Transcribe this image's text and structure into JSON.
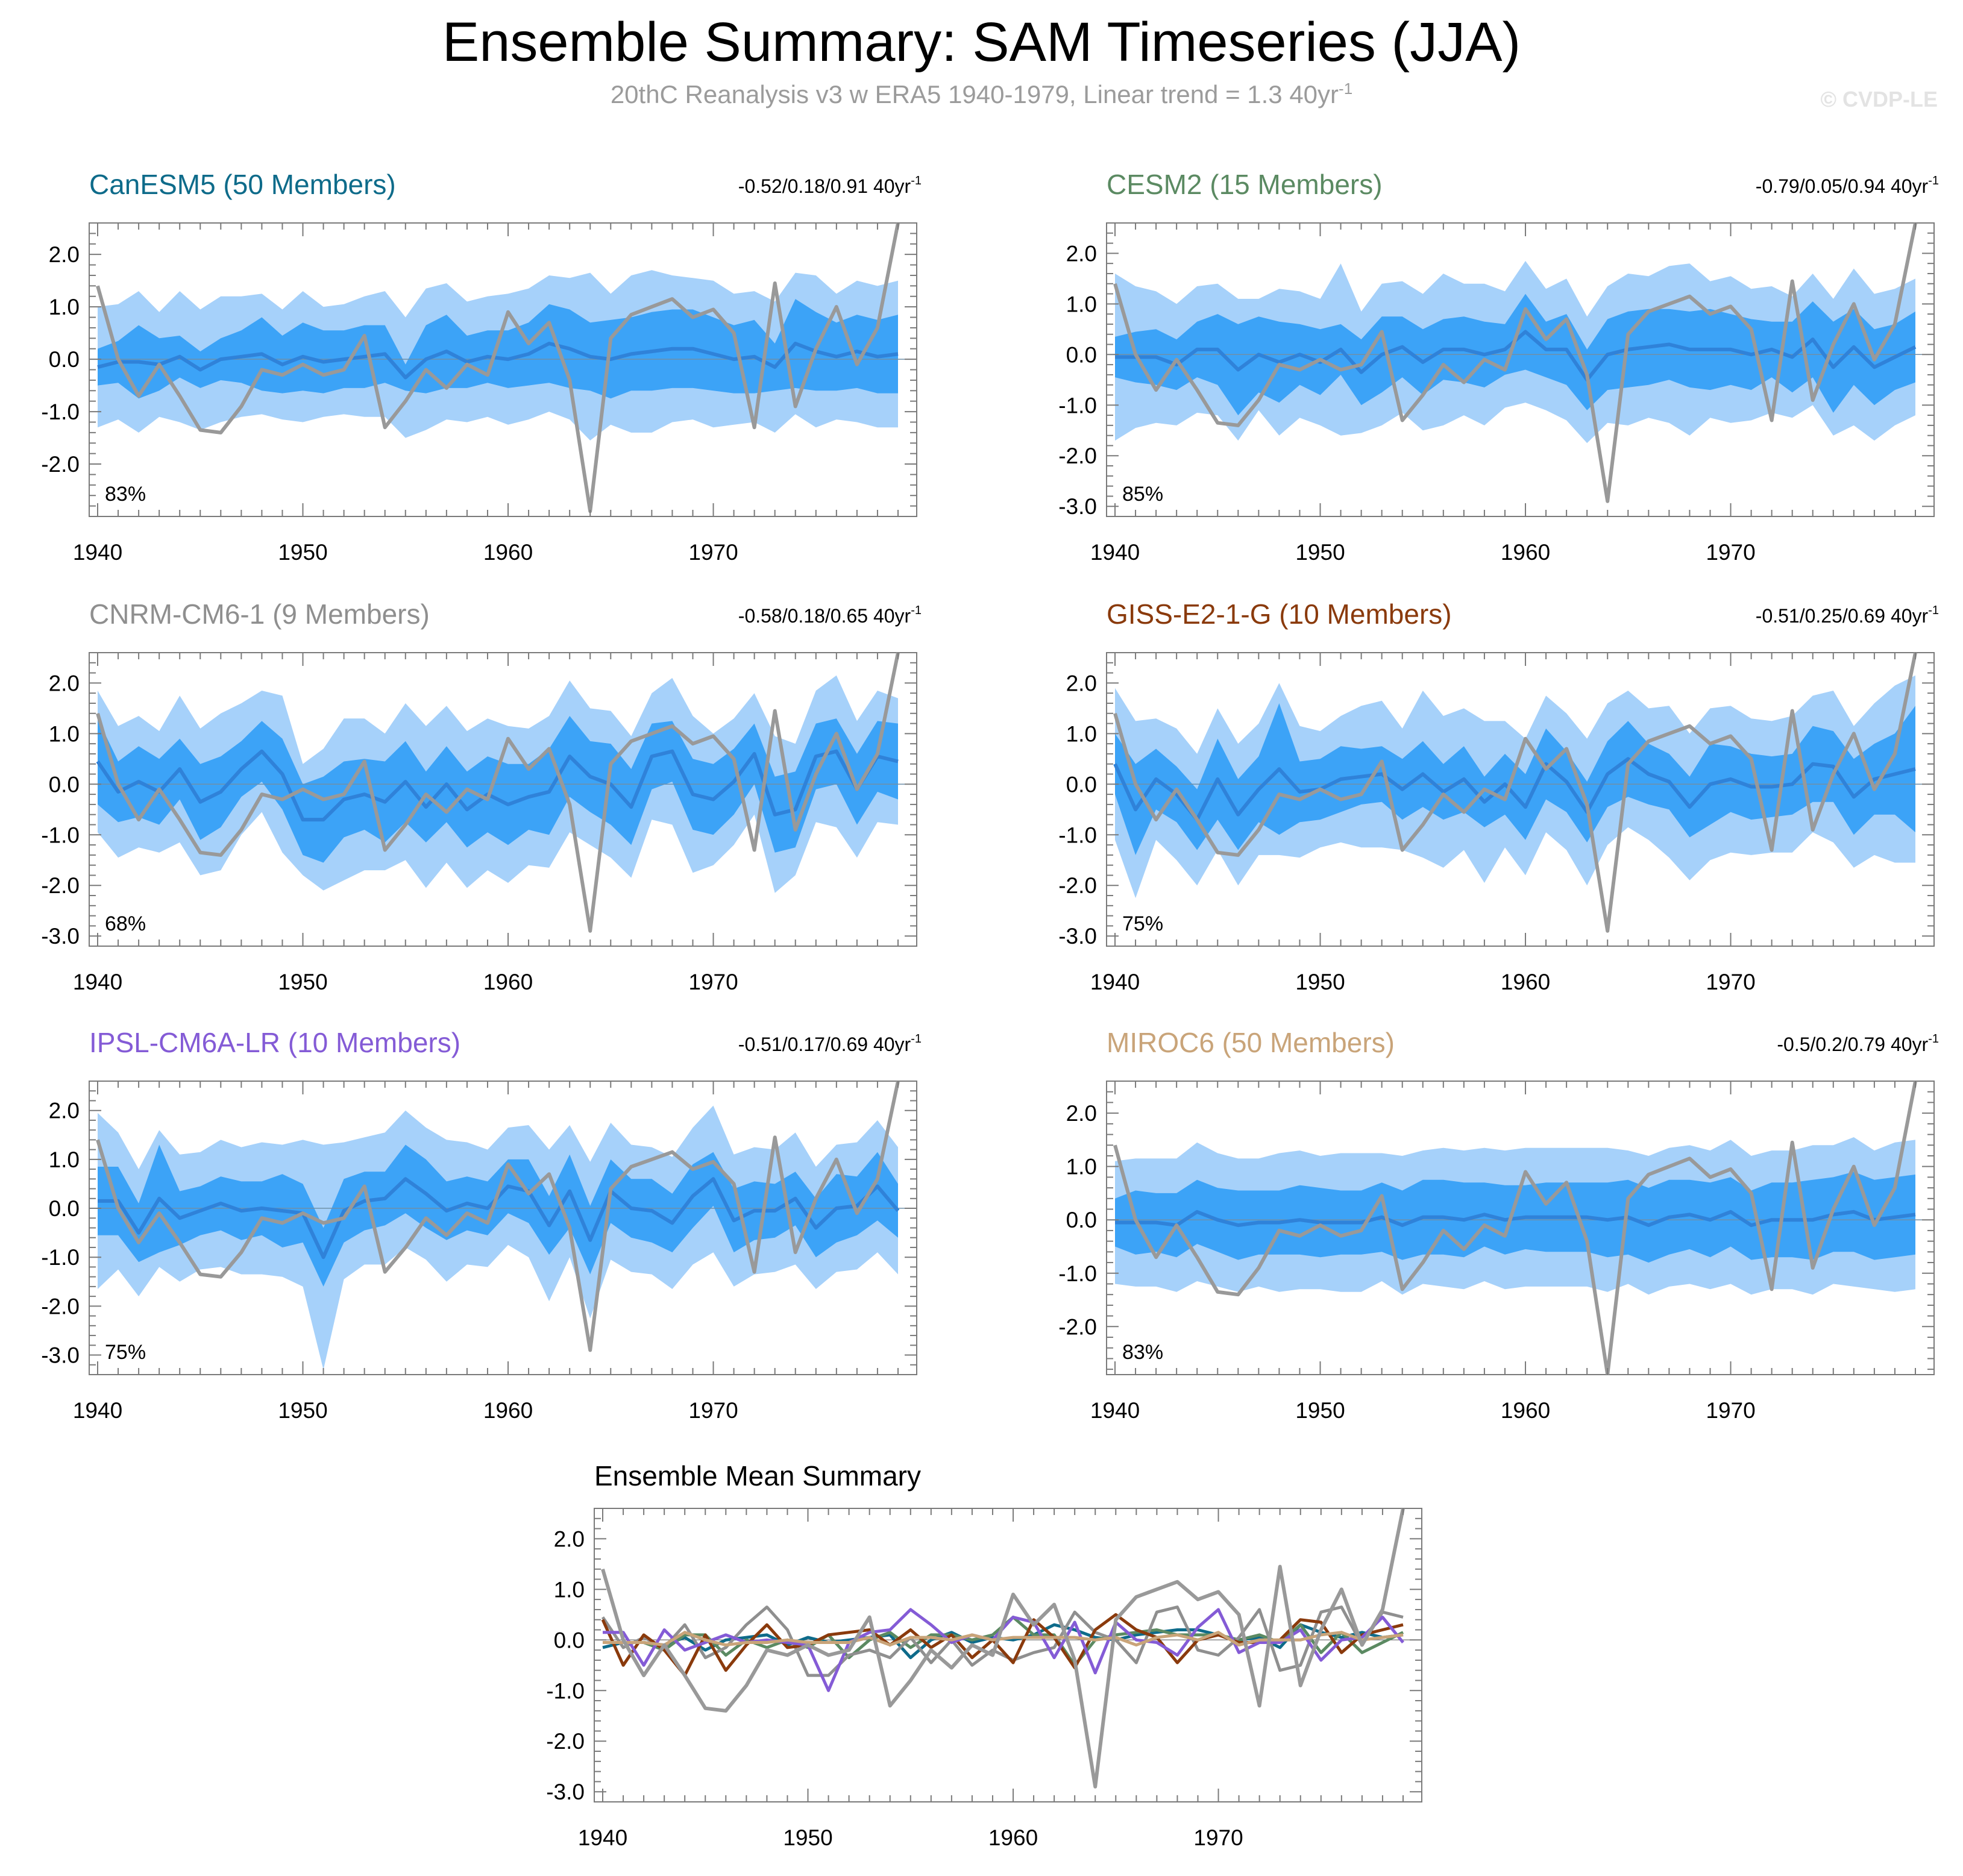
{
  "title": "Ensemble Summary: SAM Timeseries (JJA)",
  "subtitle": {
    "text": "20thC Reanalysis v3 w ERA5 1940-1979, Linear trend = 1.3 40yr",
    "superscript": "-1"
  },
  "watermark": "© CVDP-LE",
  "colors": {
    "spread_outer": "#a6d1fa",
    "spread_inner": "#3ca3f7",
    "ensemble_mean_line": "#2f82d9",
    "observations_line": "#999999",
    "CanESM5": "#0e6b8a",
    "CESM2": "#5b8a62",
    "CNRM-CM6-1": "#8f8f8f",
    "GISS-E2-1-G": "#8a3a0c",
    "IPSL-CM6A-LR": "#845bd6",
    "MIROC6": "#c9a479"
  },
  "observations": {
    "name": "20thC Reanalysis v3 w ERA5",
    "years": [
      1940,
      1941,
      1942,
      1943,
      1944,
      1945,
      1946,
      1947,
      1948,
      1949,
      1950,
      1951,
      1952,
      1953,
      1954,
      1955,
      1956,
      1957,
      1958,
      1959,
      1960,
      1961,
      1962,
      1963,
      1964,
      1965,
      1966,
      1967,
      1968,
      1969,
      1970,
      1971,
      1972,
      1973,
      1974,
      1975,
      1976,
      1977,
      1978,
      1979
    ],
    "values": [
      1.4,
      0.0,
      -0.7,
      -0.1,
      -0.7,
      -1.35,
      -1.4,
      -0.9,
      -0.2,
      -0.3,
      -0.1,
      -0.3,
      -0.2,
      0.45,
      -1.3,
      -0.8,
      -0.2,
      -0.55,
      -0.1,
      -0.3,
      0.9,
      0.3,
      0.7,
      -0.4,
      -2.9,
      0.4,
      0.85,
      1.0,
      1.15,
      0.8,
      0.95,
      0.5,
      -1.3,
      1.45,
      -0.9,
      0.2,
      1.0,
      -0.1,
      0.6,
      2.6
    ]
  },
  "chart_data": [
    {
      "type": "line",
      "title": "CanESM5 (50 Members)",
      "trend_label": "-0.52/0.18/0.91 40yr",
      "trend_sup": "-1",
      "percent_label": "83%",
      "xlim": [
        1940,
        1979
      ],
      "ylim": [
        -3.0,
        2.6
      ],
      "yticks": [
        -2.0,
        -1.0,
        0.0,
        1.0,
        2.0
      ],
      "xticks": [
        1940,
        1950,
        1960,
        1970
      ],
      "mean": [
        -0.15,
        -0.05,
        -0.05,
        -0.1,
        0.05,
        -0.2,
        0.0,
        0.05,
        0.1,
        -0.1,
        0.05,
        -0.05,
        0.0,
        0.05,
        0.1,
        -0.35,
        0.0,
        0.15,
        -0.05,
        0.05,
        0.0,
        0.1,
        0.3,
        0.2,
        0.05,
        0.0,
        0.1,
        0.15,
        0.2,
        0.2,
        0.1,
        0.0,
        0.05,
        -0.15,
        0.3,
        0.15,
        0.05,
        0.15,
        0.05,
        0.1
      ],
      "inner": [
        0.35,
        0.4,
        0.7,
        0.5,
        0.4,
        0.35,
        0.4,
        0.5,
        0.7,
        0.55,
        0.65,
        0.6,
        0.55,
        0.6,
        0.55,
        0.25,
        0.65,
        0.7,
        0.5,
        0.5,
        0.55,
        0.6,
        0.75,
        0.75,
        0.65,
        0.75,
        0.7,
        0.75,
        0.75,
        0.75,
        0.7,
        0.65,
        0.7,
        0.45,
        0.85,
        0.75,
        0.65,
        0.7,
        0.7,
        0.75
      ],
      "outer": [
        1.15,
        1.1,
        1.35,
        1.0,
        1.25,
        1.15,
        1.2,
        1.15,
        1.15,
        1.05,
        1.25,
        1.05,
        1.05,
        1.15,
        1.2,
        1.15,
        1.35,
        1.3,
        1.15,
        1.15,
        1.25,
        1.25,
        1.3,
        1.35,
        1.6,
        1.25,
        1.5,
        1.55,
        1.4,
        1.35,
        1.4,
        1.25,
        1.25,
        1.25,
        1.35,
        1.45,
        1.2,
        1.35,
        1.35,
        1.4
      ]
    },
    {
      "type": "line",
      "title": "CESM2 (15 Members)",
      "trend_label": "-0.79/0.05/0.94 40yr",
      "trend_sup": "-1",
      "percent_label": "85%",
      "xlim": [
        1940,
        1979
      ],
      "ylim": [
        -3.2,
        2.6
      ],
      "yticks": [
        -3.0,
        -2.0,
        -1.0,
        0.0,
        1.0,
        2.0
      ],
      "xticks": [
        1940,
        1950,
        1960,
        1970
      ],
      "mean": [
        -0.05,
        -0.05,
        -0.05,
        -0.2,
        0.1,
        0.1,
        -0.3,
        0.0,
        -0.15,
        0.0,
        -0.15,
        0.1,
        -0.35,
        0.0,
        0.15,
        -0.15,
        0.1,
        0.1,
        0.0,
        0.1,
        0.45,
        0.1,
        0.1,
        -0.5,
        0.0,
        0.1,
        0.15,
        0.2,
        0.1,
        0.1,
        0.1,
        0.0,
        0.1,
        -0.05,
        0.3,
        -0.25,
        0.15,
        -0.25,
        -0.05,
        0.15
      ],
      "inner": [
        0.4,
        0.5,
        0.55,
        0.5,
        0.55,
        0.7,
        0.9,
        0.75,
        0.8,
        0.6,
        0.65,
        0.5,
        0.65,
        0.75,
        0.6,
        0.65,
        0.6,
        0.65,
        0.65,
        0.5,
        0.75,
        0.55,
        0.7,
        0.6,
        0.7,
        0.75,
        0.75,
        0.7,
        0.75,
        0.8,
        0.7,
        0.7,
        0.55,
        0.7,
        0.75,
        0.9,
        0.75,
        0.75,
        0.65,
        0.7
      ],
      "outer": [
        1.65,
        1.4,
        1.3,
        1.2,
        1.25,
        1.3,
        1.4,
        1.1,
        1.45,
        1.25,
        1.25,
        1.7,
        1.2,
        1.4,
        1.3,
        1.35,
        1.5,
        1.3,
        1.4,
        1.15,
        1.4,
        1.2,
        1.4,
        1.25,
        1.35,
        1.5,
        1.4,
        1.55,
        1.7,
        1.35,
        1.45,
        1.3,
        1.25,
        1.2,
        1.3,
        1.35,
        1.55,
        1.45,
        1.35,
        1.35
      ]
    },
    {
      "type": "line",
      "title": "CNRM-CM6-1 (9 Members)",
      "trend_label": "-0.58/0.18/0.65 40yr",
      "trend_sup": "-1",
      "percent_label": "68%",
      "xlim": [
        1940,
        1979
      ],
      "ylim": [
        -3.2,
        2.6
      ],
      "yticks": [
        -3.0,
        -2.0,
        -1.0,
        0.0,
        1.0,
        2.0
      ],
      "xticks": [
        1940,
        1950,
        1960,
        1970
      ],
      "mean": [
        0.45,
        -0.15,
        0.05,
        -0.15,
        0.3,
        -0.35,
        -0.15,
        0.3,
        0.65,
        0.2,
        -0.7,
        -0.7,
        -0.3,
        -0.2,
        -0.35,
        0.05,
        -0.45,
        0.0,
        -0.5,
        -0.2,
        -0.4,
        -0.25,
        -0.15,
        0.55,
        0.15,
        0.0,
        -0.45,
        0.55,
        0.65,
        -0.2,
        -0.3,
        0.05,
        0.6,
        -0.6,
        -0.5,
        0.55,
        0.65,
        -0.1,
        0.55,
        0.45
      ],
      "inner": [
        0.85,
        0.6,
        0.7,
        0.65,
        0.6,
        0.75,
        0.7,
        0.55,
        0.6,
        0.7,
        0.7,
        0.85,
        0.75,
        0.7,
        0.8,
        0.8,
        0.7,
        0.75,
        0.75,
        0.75,
        0.8,
        0.65,
        0.85,
        0.8,
        0.7,
        0.8,
        0.75,
        0.65,
        0.6,
        0.7,
        0.7,
        0.65,
        0.6,
        0.75,
        0.75,
        0.65,
        0.65,
        0.7,
        0.7,
        0.75
      ],
      "outer": [
        1.4,
        1.3,
        1.3,
        1.2,
        1.45,
        1.45,
        1.55,
        1.3,
        1.2,
        1.55,
        1.1,
        1.4,
        1.6,
        1.5,
        1.35,
        1.55,
        1.6,
        1.55,
        1.55,
        1.5,
        1.55,
        1.35,
        1.5,
        1.5,
        1.35,
        1.45,
        1.4,
        1.25,
        1.45,
        1.55,
        1.3,
        1.25,
        1.2,
        1.55,
        1.3,
        1.3,
        1.5,
        1.35,
        1.3,
        1.25
      ]
    },
    {
      "type": "line",
      "title": "GISS-E2-1-G (10 Members)",
      "trend_label": "-0.51/0.25/0.69 40yr",
      "trend_sup": "-1",
      "percent_label": "75%",
      "xlim": [
        1940,
        1979
      ],
      "ylim": [
        -3.2,
        2.6
      ],
      "yticks": [
        -3.0,
        -2.0,
        -1.0,
        0.0,
        1.0,
        2.0
      ],
      "xticks": [
        1940,
        1950,
        1960,
        1970
      ],
      "mean": [
        0.4,
        -0.5,
        0.1,
        -0.2,
        -0.7,
        0.1,
        -0.6,
        -0.1,
        0.3,
        -0.15,
        -0.1,
        0.1,
        0.15,
        0.2,
        -0.1,
        0.2,
        -0.15,
        0.1,
        -0.35,
        0.0,
        -0.45,
        0.4,
        0.05,
        -0.55,
        0.2,
        0.5,
        0.2,
        0.05,
        -0.45,
        0.0,
        0.1,
        -0.05,
        -0.05,
        0.0,
        0.4,
        0.35,
        -0.25,
        0.1,
        0.2,
        0.3
      ],
      "inner": [
        0.6,
        0.9,
        0.6,
        0.55,
        0.6,
        0.8,
        0.7,
        0.65,
        1.3,
        0.6,
        0.6,
        0.65,
        0.55,
        0.55,
        0.6,
        0.65,
        0.55,
        0.65,
        0.5,
        0.6,
        0.65,
        0.7,
        0.6,
        0.6,
        0.65,
        0.75,
        0.6,
        0.55,
        0.6,
        0.8,
        0.65,
        0.65,
        0.6,
        0.6,
        0.75,
        0.7,
        0.75,
        0.7,
        0.8,
        1.25
      ],
      "outer": [
        1.5,
        1.75,
        1.2,
        1.3,
        1.3,
        1.4,
        1.4,
        1.3,
        1.7,
        1.3,
        1.15,
        1.25,
        1.4,
        1.45,
        1.2,
        1.65,
        1.5,
        1.4,
        1.6,
        1.25,
        1.35,
        1.35,
        1.35,
        1.45,
        1.4,
        1.35,
        1.3,
        1.5,
        1.45,
        1.5,
        1.45,
        1.35,
        1.3,
        1.35,
        1.35,
        1.5,
        1.4,
        1.5,
        1.75,
        1.85
      ]
    },
    {
      "type": "line",
      "title": "IPSL-CM6A-LR (10 Members)",
      "trend_label": "-0.51/0.17/0.69 40yr",
      "trend_sup": "-1",
      "percent_label": "75%",
      "xlim": [
        1940,
        1979
      ],
      "ylim": [
        -3.4,
        2.6
      ],
      "yticks": [
        -3.0,
        -2.0,
        -1.0,
        0.0,
        1.0,
        2.0
      ],
      "xticks": [
        1940,
        1950,
        1960,
        1970
      ],
      "mean": [
        0.15,
        0.15,
        -0.5,
        0.2,
        -0.2,
        -0.05,
        0.1,
        -0.05,
        0.0,
        -0.05,
        -0.1,
        -1.0,
        -0.05,
        0.15,
        0.2,
        0.6,
        0.3,
        -0.05,
        0.1,
        0.0,
        0.45,
        0.35,
        -0.35,
        0.35,
        -0.65,
        0.35,
        0.0,
        -0.05,
        -0.3,
        0.25,
        0.6,
        -0.25,
        -0.05,
        -0.05,
        0.2,
        -0.4,
        0.0,
        0.05,
        0.45,
        -0.05
      ],
      "inner": [
        0.7,
        0.7,
        0.6,
        1.1,
        0.55,
        0.5,
        0.55,
        0.6,
        0.55,
        0.75,
        0.6,
        0.6,
        0.65,
        0.6,
        0.55,
        0.7,
        0.7,
        0.6,
        0.55,
        0.55,
        0.55,
        0.65,
        0.6,
        0.75,
        0.7,
        0.65,
        0.6,
        0.65,
        0.6,
        0.65,
        0.55,
        0.65,
        0.6,
        0.55,
        0.55,
        0.6,
        0.7,
        0.6,
        0.7,
        0.55
      ],
      "outer": [
        1.8,
        1.4,
        1.3,
        1.4,
        1.3,
        1.2,
        1.3,
        1.3,
        1.35,
        1.35,
        1.5,
        2.3,
        1.4,
        1.3,
        1.35,
        1.4,
        1.35,
        1.45,
        1.25,
        1.2,
        1.2,
        1.35,
        1.55,
        1.35,
        1.6,
        1.4,
        1.3,
        1.3,
        1.35,
        1.4,
        1.5,
        1.35,
        1.3,
        1.25,
        1.35,
        1.25,
        1.3,
        1.3,
        1.35,
        1.3
      ]
    },
    {
      "type": "line",
      "title": "MIROC6 (50 Members)",
      "trend_label": "-0.5/0.2/0.79 40yr",
      "trend_sup": "-1",
      "percent_label": "83%",
      "xlim": [
        1940,
        1979
      ],
      "ylim": [
        -2.9,
        2.6
      ],
      "yticks": [
        -2.0,
        -1.0,
        0.0,
        1.0,
        2.0
      ],
      "xticks": [
        1940,
        1950,
        1960,
        1970
      ],
      "mean": [
        -0.05,
        -0.05,
        -0.05,
        -0.1,
        0.15,
        0.0,
        -0.1,
        -0.05,
        -0.05,
        0.0,
        -0.05,
        -0.05,
        -0.05,
        0.05,
        -0.1,
        0.05,
        0.05,
        0.0,
        0.1,
        0.0,
        0.05,
        0.05,
        0.05,
        0.05,
        0.0,
        0.05,
        -0.1,
        0.05,
        0.1,
        0.0,
        0.15,
        -0.1,
        0.0,
        0.0,
        0.0,
        0.1,
        0.15,
        0.0,
        0.05,
        0.1
      ],
      "inner": [
        0.45,
        0.6,
        0.55,
        0.6,
        0.6,
        0.6,
        0.65,
        0.6,
        0.6,
        0.65,
        0.65,
        0.6,
        0.6,
        0.65,
        0.65,
        0.7,
        0.7,
        0.7,
        0.6,
        0.65,
        0.6,
        0.65,
        0.65,
        0.65,
        0.7,
        0.7,
        0.7,
        0.7,
        0.65,
        0.7,
        0.65,
        0.65,
        0.7,
        0.7,
        0.75,
        0.7,
        0.75,
        0.75,
        0.75,
        0.75
      ],
      "outer": [
        1.15,
        1.2,
        1.2,
        1.25,
        1.3,
        1.25,
        1.25,
        1.2,
        1.3,
        1.3,
        1.25,
        1.3,
        1.3,
        1.2,
        1.3,
        1.25,
        1.3,
        1.3,
        1.25,
        1.3,
        1.3,
        1.3,
        1.3,
        1.3,
        1.35,
        1.25,
        1.3,
        1.3,
        1.3,
        1.3,
        1.35,
        1.3,
        1.3,
        1.3,
        1.4,
        1.3,
        1.4,
        1.3,
        1.4,
        1.4
      ]
    },
    {
      "type": "line",
      "title": "Ensemble Mean Summary",
      "xlim": [
        1940,
        1979
      ],
      "ylim": [
        -3.2,
        2.6
      ],
      "yticks": [
        -3.0,
        -2.0,
        -1.0,
        0.0,
        1.0,
        2.0
      ],
      "xticks": [
        1940,
        1950,
        1960,
        1970
      ],
      "series": [
        {
          "name": "CanESM5",
          "panel": 0
        },
        {
          "name": "CESM2",
          "panel": 1
        },
        {
          "name": "CNRM-CM6-1",
          "panel": 2
        },
        {
          "name": "GISS-E2-1-G",
          "panel": 3
        },
        {
          "name": "IPSL-CM6A-LR",
          "panel": 4
        },
        {
          "name": "MIROC6",
          "panel": 5
        }
      ]
    }
  ]
}
